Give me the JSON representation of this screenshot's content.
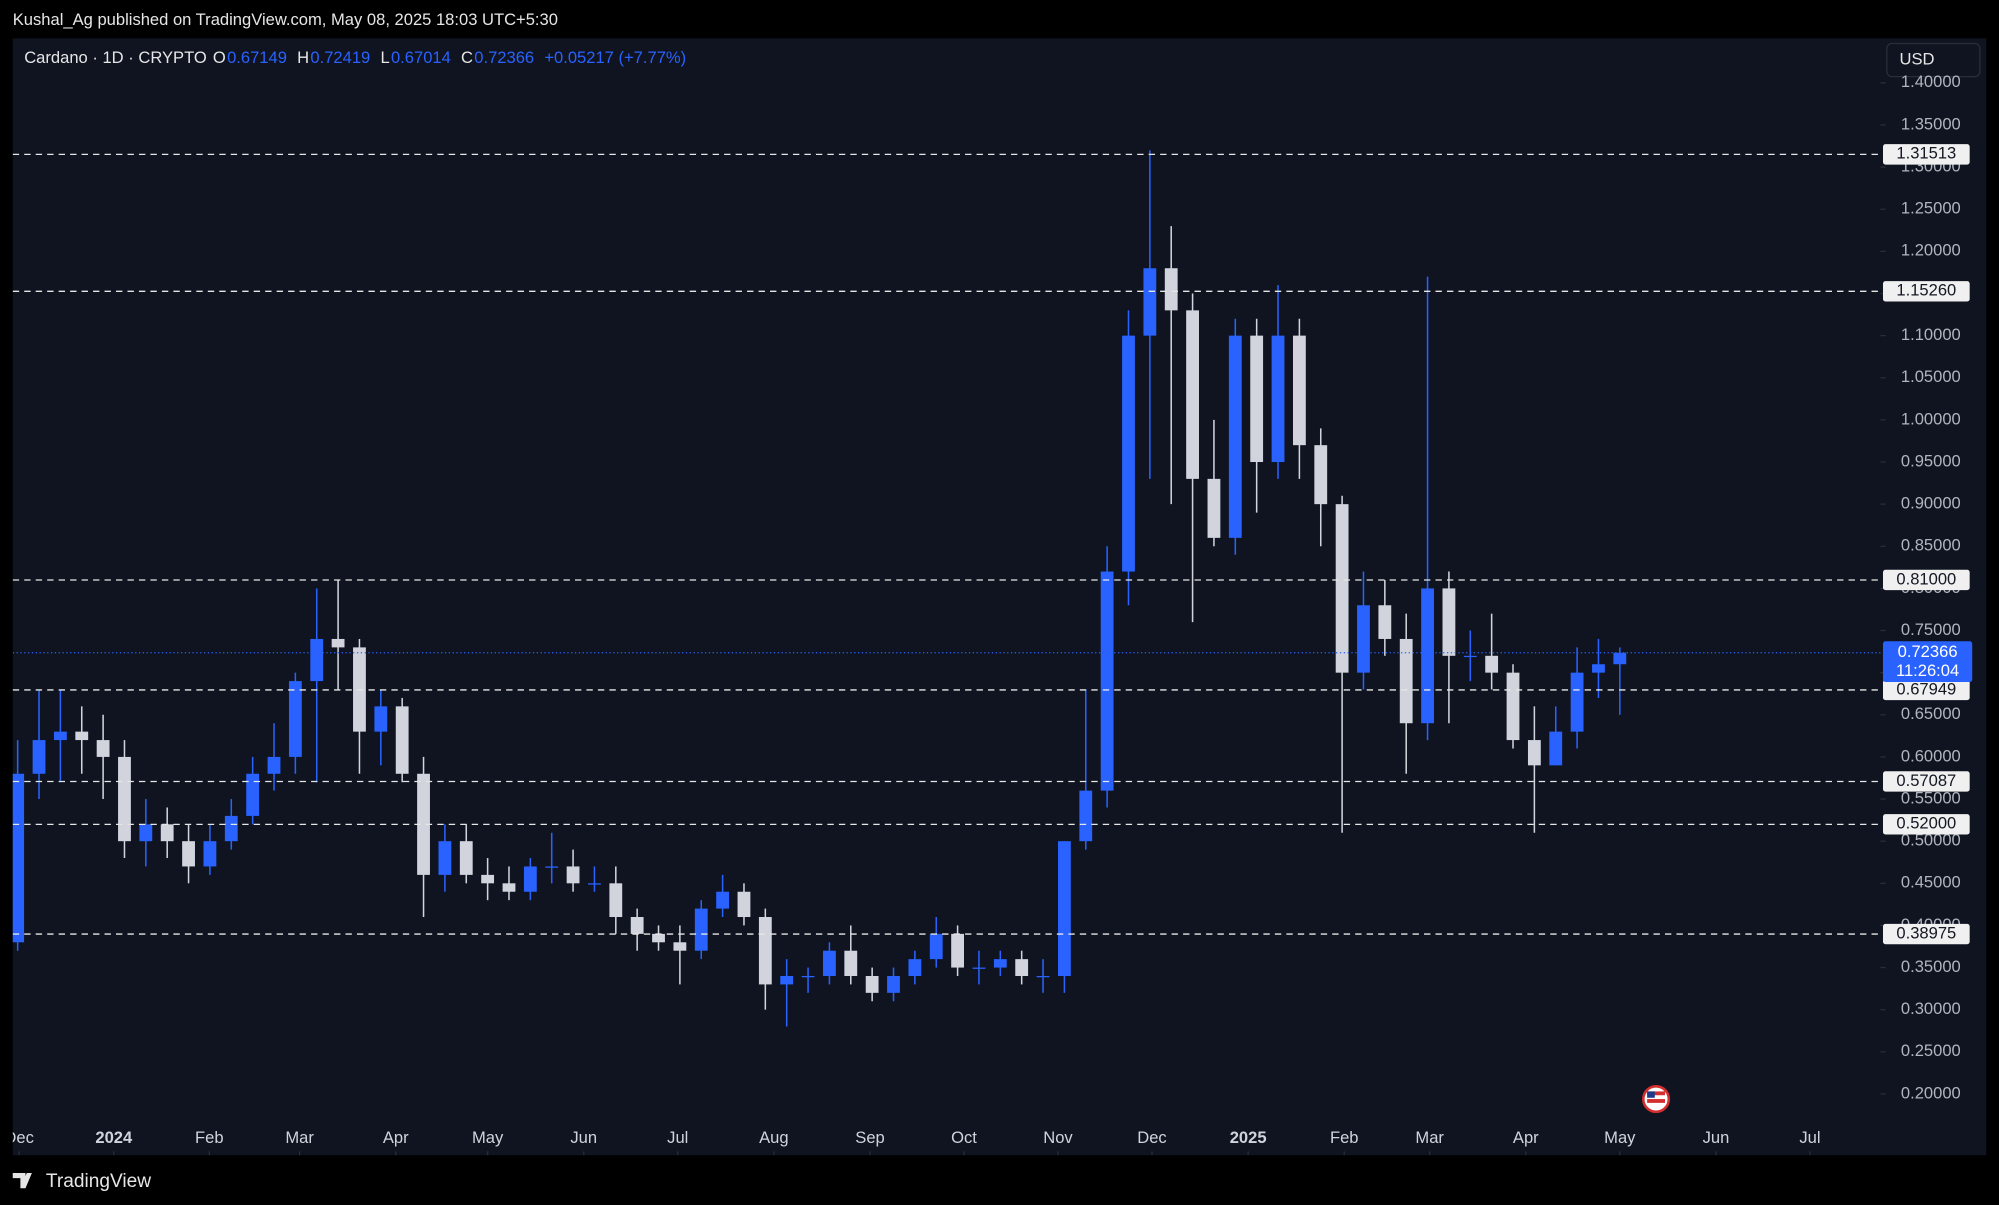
{
  "header": {
    "publisher": "Kushal_Ag published on TradingView.com, May 08, 2025 18:03 UTC+5:30",
    "symbol": "Cardano · 1D · CRYPTO",
    "ohlc": [
      {
        "label": "O",
        "value": "0.67149"
      },
      {
        "label": "H",
        "value": "0.72419"
      },
      {
        "label": "L",
        "value": "0.67014"
      },
      {
        "label": "C",
        "value": "0.72366"
      }
    ],
    "change": "+0.05217 (+7.77%)",
    "currency": "USD",
    "brand": "TradingView"
  },
  "chart_data": {
    "type": "candlestick",
    "open": [
      0.38,
      0.58,
      0.62,
      0.63,
      0.62,
      0.6,
      0.5,
      0.52,
      0.5,
      0.47,
      0.5,
      0.53,
      0.58,
      0.6,
      0.69,
      0.74,
      0.73,
      0.63,
      0.66,
      0.58,
      0.46,
      0.5,
      0.46,
      0.45,
      0.44,
      0.47,
      0.47,
      0.45,
      0.45,
      0.41,
      0.39,
      0.38,
      0.37,
      0.42,
      0.44,
      0.41,
      0.33,
      0.34,
      0.34,
      0.37,
      0.34,
      0.32,
      0.34,
      0.36,
      0.39,
      0.35,
      0.35,
      0.36,
      0.34,
      0.34,
      0.5,
      0.56,
      0.82,
      1.1,
      1.18,
      1.13,
      0.93,
      0.86,
      1.1,
      0.95,
      1.1,
      0.97,
      0.9,
      0.7,
      0.78,
      0.74,
      0.64,
      0.8,
      0.72,
      0.72,
      0.7,
      0.62,
      0.59,
      0.63,
      0.7,
      0.71
    ],
    "high": [
      0.62,
      0.68,
      0.68,
      0.66,
      0.65,
      0.62,
      0.55,
      0.54,
      0.52,
      0.52,
      0.55,
      0.6,
      0.64,
      0.7,
      0.8,
      0.81,
      0.74,
      0.68,
      0.67,
      0.6,
      0.52,
      0.52,
      0.48,
      0.47,
      0.48,
      0.51,
      0.49,
      0.47,
      0.47,
      0.42,
      0.4,
      0.4,
      0.43,
      0.46,
      0.45,
      0.42,
      0.36,
      0.35,
      0.38,
      0.4,
      0.35,
      0.35,
      0.37,
      0.41,
      0.4,
      0.37,
      0.37,
      0.37,
      0.36,
      0.5,
      0.68,
      0.85,
      1.13,
      1.32,
      1.23,
      1.15,
      1.0,
      1.12,
      1.12,
      1.16,
      1.12,
      0.99,
      0.91,
      0.82,
      0.81,
      0.77,
      1.17,
      0.82,
      0.75,
      0.77,
      0.71,
      0.66,
      0.66,
      0.73,
      0.74,
      0.73
    ],
    "low": [
      0.37,
      0.55,
      0.57,
      0.58,
      0.55,
      0.48,
      0.47,
      0.48,
      0.45,
      0.46,
      0.49,
      0.52,
      0.56,
      0.58,
      0.57,
      0.68,
      0.58,
      0.59,
      0.57,
      0.41,
      0.44,
      0.45,
      0.43,
      0.43,
      0.43,
      0.45,
      0.44,
      0.44,
      0.39,
      0.37,
      0.37,
      0.33,
      0.36,
      0.41,
      0.4,
      0.3,
      0.28,
      0.32,
      0.33,
      0.33,
      0.31,
      0.31,
      0.33,
      0.35,
      0.34,
      0.33,
      0.34,
      0.33,
      0.32,
      0.32,
      0.49,
      0.54,
      0.78,
      0.93,
      0.9,
      0.76,
      0.85,
      0.84,
      0.89,
      0.93,
      0.93,
      0.85,
      0.51,
      0.68,
      0.72,
      0.58,
      0.62,
      0.64,
      0.69,
      0.68,
      0.61,
      0.51,
      0.6,
      0.61,
      0.67,
      0.65
    ],
    "close": [
      0.58,
      0.62,
      0.63,
      0.62,
      0.6,
      0.5,
      0.52,
      0.5,
      0.47,
      0.5,
      0.53,
      0.58,
      0.6,
      0.69,
      0.74,
      0.73,
      0.63,
      0.66,
      0.58,
      0.46,
      0.5,
      0.46,
      0.45,
      0.44,
      0.47,
      0.47,
      0.45,
      0.45,
      0.41,
      0.39,
      0.38,
      0.37,
      0.42,
      0.44,
      0.41,
      0.33,
      0.34,
      0.34,
      0.37,
      0.34,
      0.32,
      0.34,
      0.36,
      0.39,
      0.35,
      0.35,
      0.36,
      0.34,
      0.34,
      0.5,
      0.56,
      0.82,
      1.1,
      1.18,
      1.13,
      0.93,
      0.86,
      1.1,
      0.95,
      1.1,
      0.97,
      0.9,
      0.7,
      0.78,
      0.74,
      0.64,
      0.8,
      0.72,
      0.72,
      0.7,
      0.62,
      0.59,
      0.63,
      0.7,
      0.71,
      0.72366
    ],
    "up_color": "#2962ff",
    "down_color": "#d1d4dc",
    "xlim": [
      0.27,
      87.7
    ],
    "xticks": [
      {
        "value": 0.57,
        "label": "Dec"
      },
      {
        "value": 5,
        "label": "2024"
      },
      {
        "value": 9.47,
        "label": "Feb"
      },
      {
        "value": 13.7,
        "label": "Mar"
      },
      {
        "value": 18.2,
        "label": "Apr"
      },
      {
        "value": 22.5,
        "label": "May"
      },
      {
        "value": 27,
        "label": "Jun"
      },
      {
        "value": 31.4,
        "label": "Jul"
      },
      {
        "value": 35.9,
        "label": "Aug"
      },
      {
        "value": 40.4,
        "label": "Sep"
      },
      {
        "value": 44.8,
        "label": "Oct"
      },
      {
        "value": 49.2,
        "label": "Nov"
      },
      {
        "value": 53.6,
        "label": "Dec"
      },
      {
        "value": 58.1,
        "label": "2025"
      },
      {
        "value": 62.6,
        "label": "Feb"
      },
      {
        "value": 66.6,
        "label": "Mar"
      },
      {
        "value": 71.1,
        "label": "Apr"
      },
      {
        "value": 75.5,
        "label": "May"
      },
      {
        "value": 80,
        "label": "Jun"
      },
      {
        "value": 84.4,
        "label": "Jul"
      }
    ],
    "ylim": [
      0.1667,
      1.4528
    ],
    "yticks": [
      {
        "value": 0.2,
        "label": "0.20000"
      },
      {
        "value": 0.25,
        "label": "0.25000"
      },
      {
        "value": 0.3,
        "label": "0.30000"
      },
      {
        "value": 0.35,
        "label": "0.35000"
      },
      {
        "value": 0.4,
        "label": "0.40000"
      },
      {
        "value": 0.45,
        "label": "0.45000"
      },
      {
        "value": 0.5,
        "label": "0.50000"
      },
      {
        "value": 0.55,
        "label": "0.55000"
      },
      {
        "value": 0.6,
        "label": "0.60000"
      },
      {
        "value": 0.65,
        "label": "0.65000"
      },
      {
        "value": 0.7,
        "label": "0.70000"
      },
      {
        "value": 0.75,
        "label": "0.75000"
      },
      {
        "value": 0.8,
        "label": "0.80000"
      },
      {
        "value": 0.85,
        "label": "0.85000"
      },
      {
        "value": 0.9,
        "label": "0.90000"
      },
      {
        "value": 0.95,
        "label": "0.95000"
      },
      {
        "value": 1,
        "label": "1.00000"
      },
      {
        "value": 1.05,
        "label": "1.05000"
      },
      {
        "value": 1.1,
        "label": "1.10000"
      },
      {
        "value": 1.15,
        "label": "1.15000"
      },
      {
        "value": 1.2,
        "label": "1.20000"
      },
      {
        "value": 1.25,
        "label": "1.25000"
      },
      {
        "value": 1.3,
        "label": "1.30000"
      },
      {
        "value": 1.35,
        "label": "1.35000"
      },
      {
        "value": 1.4,
        "label": "1.40000"
      }
    ],
    "levels": [
      1.31513,
      {
        "value": 1.1526,
        "label": "1.15260"
      },
      {
        "value": 0.81,
        "label": "0.81000"
      },
      0.67949,
      0.57087,
      {
        "value": 0.52,
        "label": "0.52000"
      },
      0.38975
    ],
    "last_price": {
      "value": 0.72366,
      "label": "0.72366",
      "countdown": "11:26:04"
    }
  }
}
